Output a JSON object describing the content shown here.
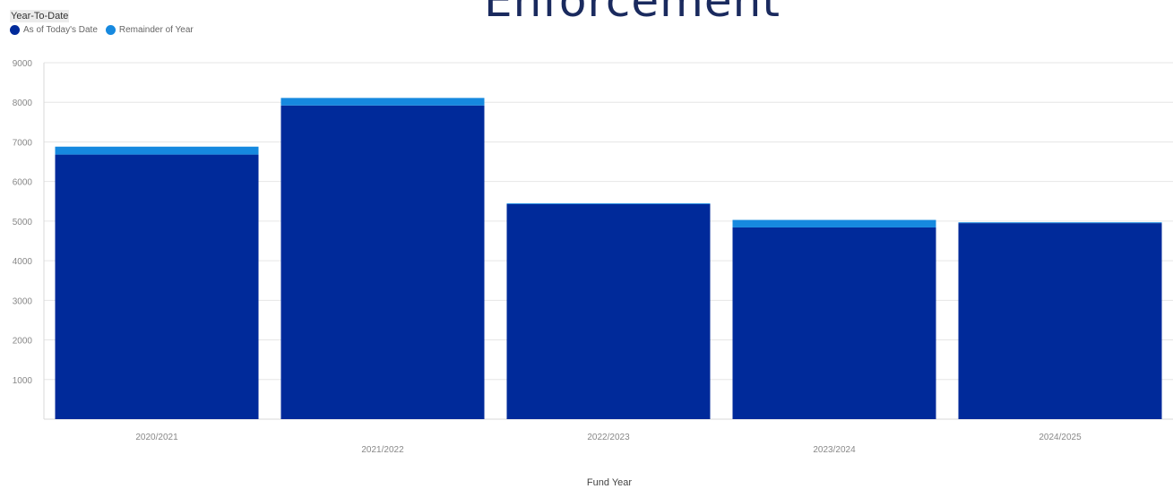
{
  "title": "Enforcement",
  "subtitle_label": "Year-To-Date",
  "legend": [
    {
      "label": "As of Today's Date",
      "color": "#002a9a"
    },
    {
      "label": "Remainder of Year",
      "color": "#1689df"
    }
  ],
  "chart_data": {
    "type": "bar",
    "stacked": true,
    "title": "Enforcement",
    "xlabel": "Fund Year",
    "ylabel": "",
    "ylim": [
      0,
      9000
    ],
    "yticks": [
      1000,
      2000,
      3000,
      4000,
      5000,
      6000,
      7000,
      8000,
      9000
    ],
    "grid": true,
    "legend_position": "top-left",
    "categories": [
      "2020/2021",
      "2021/2022",
      "2022/2023",
      "2023/2024",
      "2024/2025"
    ],
    "series": [
      {
        "name": "As of Today's Date",
        "color": "#002a9a",
        "values": [
          6680,
          7920,
          5430,
          4840,
          4950
        ]
      },
      {
        "name": "Remainder of Year",
        "color": "#1689df",
        "values": [
          200,
          190,
          20,
          190,
          20
        ]
      }
    ]
  }
}
